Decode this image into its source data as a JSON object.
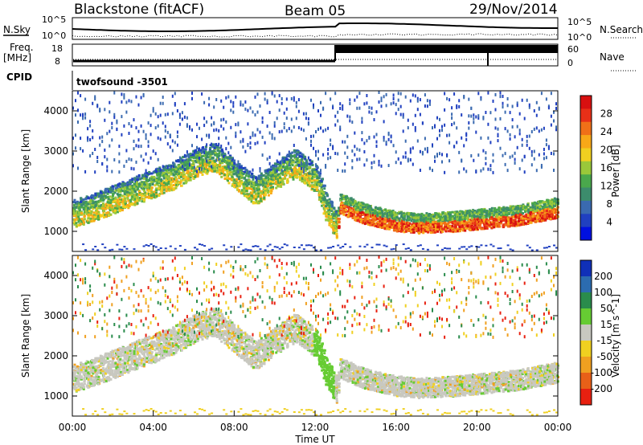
{
  "header": {
    "station": "Blackstone (fitACF)",
    "beam": "Beam 05",
    "date": "29/Nov/2014"
  },
  "strips": {
    "nsky_label": "N.Sky",
    "nsearch_label": "N.Search",
    "freq_label_1": "Freq.",
    "freq_label_2": "[MHz]",
    "nave_label": "Nave",
    "cpid_label": "CPID",
    "noise_left_ticks": [
      "10^5",
      "10^0"
    ],
    "noise_right_ticks": [
      "10^5",
      "10^0"
    ],
    "freq_ticks": [
      "18",
      "8"
    ],
    "nave_ticks": [
      "60",
      "0"
    ],
    "cpid_text": "twofsound  -3501"
  },
  "chart_data": [
    {
      "type": "heatmap",
      "name": "power",
      "ylabel": "Slant Range [km]",
      "yticks": [
        "1000",
        "2000",
        "3000",
        "4000"
      ],
      "ylim": [
        500,
        4500
      ],
      "xlim": [
        0,
        24
      ],
      "colorbar_label": "Power [dB]",
      "colorbar_ticks": [
        "4",
        "8",
        "12",
        "16",
        "20",
        "24",
        "28"
      ],
      "colorbar_colors": [
        "#0010e0",
        "#2040c0",
        "#3a6ab0",
        "#3c8c6c",
        "#4aa84c",
        "#9ac83a",
        "#f0d020",
        "#f8a818",
        "#f07018",
        "#e83018",
        "#d81010"
      ],
      "ridge_km": [
        [
          0,
          1300
        ],
        [
          1,
          1450
        ],
        [
          2,
          1650
        ],
        [
          3,
          1850
        ],
        [
          4,
          2050
        ],
        [
          5,
          2250
        ],
        [
          6,
          2550
        ],
        [
          7,
          2700
        ],
        [
          8,
          2250
        ],
        [
          9,
          1850
        ],
        [
          10,
          2250
        ],
        [
          11,
          2550
        ],
        [
          12,
          2150
        ],
        [
          12.5,
          1450
        ],
        [
          13,
          1000
        ],
        [
          13.2,
          1600
        ],
        [
          14,
          1400
        ],
        [
          15,
          1250
        ],
        [
          16,
          1150
        ],
        [
          17,
          1100
        ],
        [
          18,
          1120
        ],
        [
          19,
          1150
        ],
        [
          20,
          1200
        ],
        [
          21,
          1250
        ],
        [
          22,
          1300
        ],
        [
          23,
          1400
        ],
        [
          24,
          1500
        ]
      ]
    },
    {
      "type": "heatmap",
      "name": "velocity",
      "xlabel": "Time UT",
      "ylabel": "Slant Range [km]",
      "xticks": [
        "00:00",
        "04:00",
        "08:00",
        "12:00",
        "16:00",
        "20:00",
        "00:00"
      ],
      "yticks": [
        "1000",
        "2000",
        "3000",
        "4000"
      ],
      "ylim": [
        500,
        4500
      ],
      "xlim": [
        0,
        24
      ],
      "colorbar_label": "Velocity [m s^-1]",
      "colorbar_ticks": [
        "200",
        "100",
        "50",
        "15",
        "-15",
        "-50",
        "-100",
        "-200"
      ],
      "colorbar_colors": [
        "#1030b8",
        "#2c6cb0",
        "#2a8c4c",
        "#66cc33",
        "#c8c8c0",
        "#f0d020",
        "#f0a020",
        "#e86018",
        "#e82010"
      ]
    }
  ]
}
